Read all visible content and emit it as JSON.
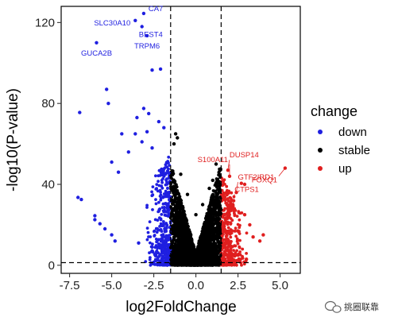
{
  "chart_data": {
    "type": "scatter",
    "xlabel": "log2FoldChange",
    "ylabel": "-log10(P-value)",
    "xlim": [
      -8,
      6.2
    ],
    "ylim": [
      -4,
      128
    ],
    "x_ticks": [
      -7.5,
      -5.0,
      -2.5,
      0.0,
      2.5,
      5.0
    ],
    "x_tick_labels": [
      "-7.5",
      "-5.0",
      "-2.5",
      "0.0",
      "2.5",
      "5.0"
    ],
    "y_ticks": [
      0,
      40,
      80,
      120
    ],
    "y_tick_labels": [
      "0",
      "40",
      "80",
      "120"
    ],
    "thresholds": {
      "log2fc": [
        -1.5,
        1.5
      ],
      "neg_log10_p": 1.3
    },
    "threshold_line_style": "dashed",
    "grid": false,
    "legend": {
      "title": "change",
      "placement": "right",
      "entries": [
        {
          "label": "down",
          "color": "#1f1fe0"
        },
        {
          "label": "stable",
          "color": "#000000"
        },
        {
          "label": "up",
          "color": "#e01f1f"
        }
      ]
    },
    "series": [
      {
        "name": "down",
        "color": "#1f1fe0",
        "points": [
          [
            -3.1,
            124.5
          ],
          [
            -3.6,
            121.0
          ],
          [
            -3.2,
            118.0
          ],
          [
            -2.9,
            113.5
          ],
          [
            -5.9,
            110.0
          ],
          [
            -2.1,
            97.0
          ],
          [
            -2.6,
            96.5
          ],
          [
            -5.3,
            87.0
          ],
          [
            -5.2,
            80.0
          ],
          [
            -6.9,
            75.5
          ],
          [
            -3.1,
            77.5
          ],
          [
            -2.8,
            75.0
          ],
          [
            -3.5,
            73.0
          ],
          [
            -2.2,
            71.0
          ],
          [
            -3.6,
            65.0
          ],
          [
            -4.4,
            65.0
          ],
          [
            -2.9,
            66.0
          ],
          [
            -1.9,
            68.0
          ],
          [
            -3.2,
            61.0
          ],
          [
            -4.0,
            56.0
          ],
          [
            -2.6,
            58.0
          ],
          [
            -5.0,
            51.0
          ],
          [
            -4.6,
            46.0
          ],
          [
            -6.8,
            32.5
          ],
          [
            -7.0,
            33.5
          ],
          [
            -6.0,
            24.5
          ],
          [
            -6.0,
            22.5
          ],
          [
            -5.7,
            20.5
          ],
          [
            -5.4,
            18.0
          ],
          [
            -5.0,
            15.0
          ],
          [
            -4.8,
            12.0
          ],
          [
            -3.4,
            11.0
          ],
          [
            -2.6,
            9.0
          ],
          [
            -2.0,
            6.0
          ],
          [
            -1.8,
            3.0
          ],
          [
            -1.7,
            1.8
          ]
        ]
      },
      {
        "name": "stable",
        "color": "#000000",
        "points": [
          [
            -1.3,
            60.0
          ],
          [
            -1.1,
            63.0
          ],
          [
            -1.2,
            65.0
          ],
          [
            -0.9,
            45.0
          ],
          [
            -0.5,
            35.0
          ],
          [
            0.0,
            25.0
          ],
          [
            0.4,
            30.0
          ],
          [
            0.8,
            38.0
          ],
          [
            1.0,
            42.0
          ],
          [
            1.2,
            50.0
          ],
          [
            -0.3,
            15.0
          ],
          [
            0.2,
            12.0
          ],
          [
            0.0,
            5.0
          ],
          [
            -0.8,
            10.0
          ],
          [
            0.6,
            8.0
          ],
          [
            1.3,
            20.0
          ]
        ]
      },
      {
        "name": "up",
        "color": "#e01f1f",
        "points": [
          [
            5.3,
            48.0
          ],
          [
            2.7,
            40.5
          ],
          [
            2.9,
            40.0
          ],
          [
            2.4,
            36.0
          ],
          [
            2.0,
            44.0
          ],
          [
            1.9,
            47.0
          ],
          [
            3.2,
            20.0
          ],
          [
            3.4,
            14.0
          ],
          [
            3.8,
            12.0
          ],
          [
            4.0,
            15.0
          ],
          [
            2.9,
            25.0
          ],
          [
            2.2,
            30.0
          ],
          [
            1.9,
            9.0
          ],
          [
            2.5,
            5.0
          ],
          [
            3.0,
            3.0
          ],
          [
            1.6,
            2.0
          ]
        ]
      }
    ],
    "annotations": [
      {
        "gene": "CA7",
        "x": -3.1,
        "y": 124.5,
        "color": "#1f1fe0",
        "side": "right"
      },
      {
        "gene": "SLC30A10",
        "x": -3.6,
        "y": 121.0,
        "color": "#1f1fe0",
        "side": "left"
      },
      {
        "gene": "BEST4",
        "x": -3.2,
        "y": 118.0,
        "color": "#1f1fe0",
        "side": "below-right"
      },
      {
        "gene": "TRPM6",
        "x": -2.9,
        "y": 113.5,
        "color": "#1f1fe0",
        "side": "below"
      },
      {
        "gene": "GUCA2B",
        "x": -5.9,
        "y": 110.0,
        "color": "#1f1fe0",
        "side": "below"
      },
      {
        "gene": "DUSP14",
        "x": 1.9,
        "y": 47.0,
        "color": "#e01f1f",
        "side": "above-right"
      },
      {
        "gene": "S100A11",
        "x": 2.0,
        "y": 44.0,
        "color": "#e01f1f",
        "side": "above-left"
      },
      {
        "gene": "GTF2IRD1",
        "x": 2.4,
        "y": 36.0,
        "color": "#e01f1f",
        "side": "above-right"
      },
      {
        "gene": "CTPS1",
        "x": 2.2,
        "y": 30.0,
        "color": "#e01f1f",
        "side": "above-right"
      },
      {
        "gene": "FOXQ1",
        "x": 5.3,
        "y": 48.0,
        "color": "#e01f1f",
        "side": "below-left"
      }
    ]
  },
  "watermark": {
    "text": "挑圈联靠",
    "icon": "wechat-icon"
  }
}
